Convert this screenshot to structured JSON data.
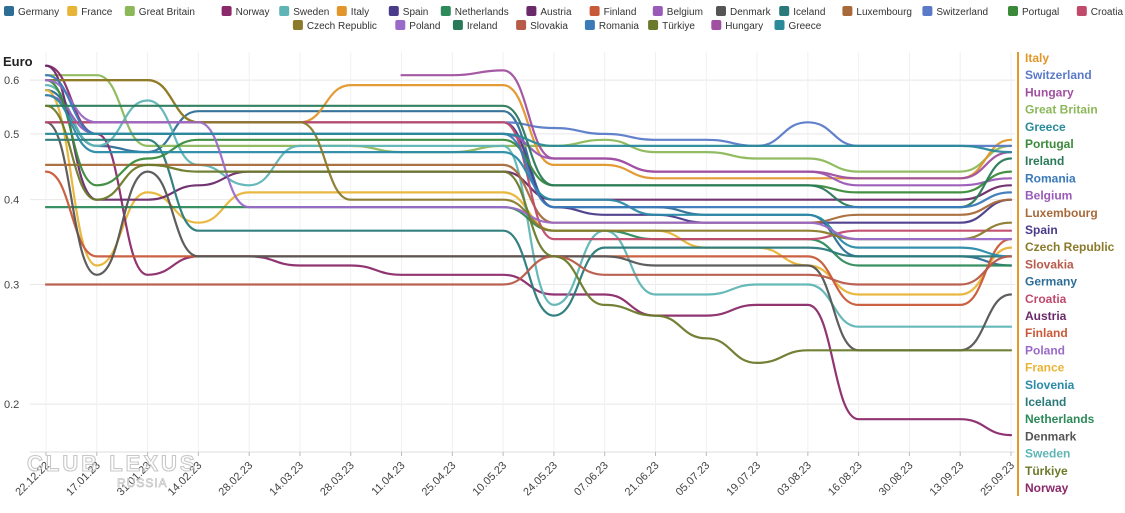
{
  "chart_data": {
    "type": "line",
    "ylabel": "Euro",
    "y_scale": "log",
    "ylim": [
      0.17,
      0.66
    ],
    "yticks": [
      0.2,
      0.3,
      0.4,
      0.5,
      0.6
    ],
    "ytick_labels": [
      "0.2",
      "0.3",
      "0.4",
      "0.5",
      "0.6"
    ],
    "x_ticks": [
      "22.12.22",
      "17.01.23",
      "31.01.23",
      "14.02.23",
      "28.02.23",
      "14.03.23",
      "28.03.23",
      "11.04.23",
      "25.04.23",
      "10.05.23",
      "24.05.23",
      "07.06.23",
      "21.06.23",
      "05.07.23",
      "19.07.23",
      "03.08.23",
      "16.08.23",
      "30.08.23",
      "13.09.23",
      "25.09.23"
    ],
    "legend_placement": "top",
    "grid": "horizontal",
    "watermark": "CLUB LEXUS",
    "watermark_sub": "RUSSIA",
    "series": [
      {
        "name": "Germany",
        "color": "#2e6e96",
        "values": [
          0.58,
          0.48,
          0.47,
          0.54,
          0.54,
          0.54,
          0.54,
          0.54,
          0.54,
          0.54,
          0.39,
          0.39,
          0.39,
          0.38,
          0.38,
          0.38,
          0.33,
          0.33,
          0.33,
          0.32
        ]
      },
      {
        "name": "France",
        "color": "#e8b437",
        "values": [
          0.58,
          0.32,
          0.41,
          0.37,
          0.41,
          0.41,
          0.41,
          0.41,
          0.41,
          0.41,
          0.36,
          0.36,
          0.36,
          0.34,
          0.34,
          0.32,
          0.29,
          0.29,
          0.29,
          0.34
        ]
      },
      {
        "name": "Great Britain",
        "color": "#8cb85a",
        "values": [
          0.61,
          0.61,
          0.48,
          0.48,
          0.48,
          0.48,
          0.48,
          0.47,
          0.47,
          0.48,
          0.48,
          0.49,
          0.47,
          0.47,
          0.46,
          0.46,
          0.44,
          0.44,
          0.44,
          0.48
        ]
      },
      {
        "name": "Norway",
        "color": "#8a2a6a",
        "values": [
          0.63,
          0.5,
          0.31,
          0.33,
          0.33,
          0.32,
          0.32,
          0.31,
          0.31,
          0.31,
          0.29,
          0.29,
          0.27,
          0.27,
          0.28,
          0.28,
          0.19,
          0.19,
          0.19,
          0.18
        ]
      },
      {
        "name": "Sweden",
        "color": "#5fb5b5",
        "values": [
          0.59,
          0.48,
          0.56,
          0.45,
          0.42,
          0.48,
          0.48,
          0.48,
          0.48,
          0.48,
          0.28,
          0.36,
          0.29,
          0.29,
          0.3,
          0.3,
          0.26,
          0.26,
          0.26,
          0.26
        ]
      },
      {
        "name": "Italy",
        "color": "#e0962a",
        "values": [
          0.6,
          0.6,
          0.6,
          0.52,
          0.52,
          0.52,
          0.59,
          0.59,
          0.59,
          0.59,
          0.45,
          0.45,
          0.43,
          0.43,
          0.43,
          0.43,
          0.43,
          0.43,
          0.43,
          0.49
        ]
      },
      {
        "name": "Spain",
        "color": "#4a3a8a",
        "values": [
          0.52,
          0.52,
          0.52,
          0.52,
          0.52,
          0.52,
          0.52,
          0.52,
          0.52,
          0.52,
          0.39,
          0.38,
          0.38,
          0.37,
          0.37,
          0.37,
          0.37,
          0.37,
          0.37,
          0.4
        ]
      },
      {
        "name": "Netherlands",
        "color": "#2e8a5a",
        "values": [
          0.39,
          0.39,
          0.39,
          0.39,
          0.39,
          0.39,
          0.39,
          0.39,
          0.39,
          0.39,
          0.36,
          0.36,
          0.35,
          0.35,
          0.35,
          0.35,
          0.32,
          0.32,
          0.32,
          0.32
        ]
      },
      {
        "name": "Austria",
        "color": "#6a2a6a",
        "values": [
          0.63,
          0.4,
          0.4,
          0.42,
          0.44,
          0.44,
          0.44,
          0.44,
          0.44,
          0.44,
          0.4,
          0.4,
          0.4,
          0.4,
          0.4,
          0.4,
          0.4,
          0.4,
          0.4,
          0.42
        ]
      },
      {
        "name": "Finland",
        "color": "#c85a3a",
        "values": [
          0.44,
          0.33,
          0.33,
          0.33,
          0.33,
          0.33,
          0.33,
          0.33,
          0.33,
          0.33,
          0.33,
          0.33,
          0.33,
          0.33,
          0.33,
          0.33,
          0.28,
          0.28,
          0.28,
          0.35
        ]
      },
      {
        "name": "Belgium",
        "color": "#9a5ab8",
        "values": [
          0.57,
          0.5,
          0.5,
          0.5,
          0.5,
          0.5,
          0.5,
          0.5,
          0.5,
          0.5,
          0.46,
          0.46,
          0.44,
          0.44,
          0.44,
          0.44,
          0.42,
          0.42,
          0.42,
          0.43
        ]
      },
      {
        "name": "Denmark",
        "color": "#555555",
        "values": [
          0.52,
          0.31,
          0.44,
          0.33,
          0.33,
          0.33,
          0.33,
          0.33,
          0.33,
          0.33,
          0.33,
          0.33,
          0.32,
          0.32,
          0.32,
          0.32,
          0.24,
          0.24,
          0.24,
          0.29
        ]
      },
      {
        "name": "Iceland",
        "color": "#2a7a7a",
        "values": [
          0.49,
          0.49,
          0.49,
          0.36,
          0.36,
          0.36,
          0.36,
          0.36,
          0.36,
          0.36,
          0.27,
          0.34,
          0.34,
          0.34,
          0.34,
          0.34,
          0.33,
          0.33,
          0.33,
          0.33
        ]
      },
      {
        "name": "Luxembourg",
        "color": "#a86a3a",
        "values": [
          0.45,
          0.45,
          0.45,
          0.45,
          0.45,
          0.45,
          0.45,
          0.45,
          0.45,
          0.45,
          0.37,
          0.37,
          0.37,
          0.37,
          0.37,
          0.37,
          0.38,
          0.38,
          0.38,
          0.4
        ]
      },
      {
        "name": "Switzerland",
        "color": "#5a7ac8",
        "values": [
          null,
          null,
          null,
          null,
          null,
          null,
          null,
          null,
          null,
          0.52,
          0.51,
          0.5,
          0.49,
          0.49,
          0.48,
          0.52,
          0.48,
          0.48,
          0.48,
          0.48
        ]
      },
      {
        "name": "Portugal",
        "color": "#3a8a3a",
        "values": [
          0.6,
          0.42,
          0.46,
          0.49,
          0.49,
          0.49,
          0.49,
          0.49,
          0.49,
          0.49,
          0.42,
          0.42,
          0.42,
          0.42,
          0.42,
          0.42,
          0.41,
          0.41,
          0.41,
          0.44
        ]
      },
      {
        "name": "Croatia",
        "color": "#c04a6a",
        "values": [
          0.52,
          0.52,
          0.52,
          0.52,
          0.52,
          0.52,
          0.52,
          0.52,
          0.52,
          0.52,
          0.35,
          0.35,
          0.35,
          0.35,
          0.35,
          0.35,
          0.36,
          0.36,
          0.36,
          0.36
        ]
      },
      {
        "name": "Slovenia",
        "color": "#2a8aa8",
        "values": [
          0.57,
          0.47,
          0.47,
          0.47,
          0.47,
          0.47,
          0.47,
          0.47,
          0.47,
          0.47,
          0.4,
          0.4,
          0.38,
          0.38,
          0.38,
          0.38,
          0.34,
          0.34,
          0.34,
          0.33
        ]
      },
      {
        "name": "Czech Republic",
        "color": "#8a7a2a",
        "values": [
          0.6,
          0.6,
          0.6,
          0.52,
          0.52,
          0.52,
          0.4,
          0.4,
          0.4,
          0.4,
          0.36,
          0.36,
          0.36,
          0.36,
          0.36,
          0.36,
          0.35,
          0.35,
          0.35,
          0.37
        ]
      },
      {
        "name": "Poland",
        "color": "#9a6ac8",
        "values": [
          0.6,
          0.52,
          0.52,
          0.52,
          0.39,
          0.39,
          0.39,
          0.39,
          0.39,
          0.39,
          0.37,
          0.37,
          0.37,
          0.37,
          0.37,
          0.37,
          0.35,
          0.35,
          0.35,
          0.35
        ]
      },
      {
        "name": "Ireland",
        "color": "#2a7a5a",
        "values": [
          0.55,
          0.55,
          0.55,
          0.55,
          0.55,
          0.55,
          0.55,
          0.55,
          0.55,
          0.55,
          0.42,
          0.42,
          0.42,
          0.42,
          0.42,
          0.42,
          0.39,
          0.39,
          0.39,
          0.46
        ]
      },
      {
        "name": "Slovakia",
        "color": "#b85a4a",
        "values": [
          0.3,
          0.3,
          0.3,
          0.3,
          0.3,
          0.3,
          0.3,
          0.3,
          0.3,
          0.3,
          0.33,
          0.31,
          0.31,
          0.31,
          0.31,
          0.31,
          0.3,
          0.3,
          0.3,
          0.33
        ]
      },
      {
        "name": "Romania",
        "color": "#3a7ab8",
        "values": [
          0.61,
          0.5,
          0.5,
          0.5,
          0.5,
          0.5,
          0.5,
          0.5,
          0.5,
          0.5,
          0.39,
          0.39,
          0.39,
          0.39,
          0.39,
          0.39,
          0.39,
          0.39,
          0.39,
          0.41
        ]
      },
      {
        "name": "Türkiye",
        "color": "#6a7a2a",
        "values": [
          0.55,
          0.4,
          0.45,
          0.44,
          0.44,
          0.44,
          0.44,
          0.44,
          0.44,
          0.44,
          0.33,
          0.28,
          0.27,
          0.25,
          0.23,
          0.24,
          0.24,
          0.24,
          0.24,
          0.24
        ]
      },
      {
        "name": "Hungary",
        "color": "#a050a0",
        "values": [
          null,
          null,
          null,
          null,
          null,
          null,
          null,
          0.61,
          0.61,
          0.62,
          0.46,
          0.46,
          0.44,
          0.44,
          0.44,
          0.44,
          0.43,
          0.43,
          0.43,
          0.47
        ]
      },
      {
        "name": "Greece",
        "color": "#2a8a9a",
        "values": [
          0.5,
          0.5,
          0.5,
          0.5,
          0.5,
          0.5,
          0.5,
          0.5,
          0.5,
          0.5,
          0.48,
          0.48,
          0.48,
          0.48,
          0.48,
          0.48,
          0.48,
          0.48,
          0.48,
          0.47
        ]
      }
    ],
    "end_labels": [
      {
        "name": "Italy",
        "color": "#e0962a"
      },
      {
        "name": "Switzerland",
        "color": "#5a7ac8"
      },
      {
        "name": "Hungary",
        "color": "#a050a0"
      },
      {
        "name": "Great Britain",
        "color": "#8cb85a"
      },
      {
        "name": "Greece",
        "color": "#2a8a9a"
      },
      {
        "name": "Portugal",
        "color": "#3a8a3a"
      },
      {
        "name": "Ireland",
        "color": "#2a7a5a"
      },
      {
        "name": "Romania",
        "color": "#3a7ab8"
      },
      {
        "name": "Belgium",
        "color": "#9a5ab8"
      },
      {
        "name": "Luxembourg",
        "color": "#a86a3a"
      },
      {
        "name": "Spain",
        "color": "#4a3a8a"
      },
      {
        "name": "Czech Republic",
        "color": "#8a7a2a"
      },
      {
        "name": "Slovakia",
        "color": "#b85a4a"
      },
      {
        "name": "Germany",
        "color": "#2e6e96"
      },
      {
        "name": "Croatia",
        "color": "#c04a6a"
      },
      {
        "name": "Austria",
        "color": "#6a2a6a"
      },
      {
        "name": "Finland",
        "color": "#c85a3a"
      },
      {
        "name": "Poland",
        "color": "#9a6ac8"
      },
      {
        "name": "France",
        "color": "#e8b437"
      },
      {
        "name": "Slovenia",
        "color": "#2a8aa8"
      },
      {
        "name": "Iceland",
        "color": "#2a7a7a"
      },
      {
        "name": "Netherlands",
        "color": "#2e8a5a"
      },
      {
        "name": "Denmark",
        "color": "#555555"
      },
      {
        "name": "Sweden",
        "color": "#5fb5b5"
      },
      {
        "name": "Türkiye",
        "color": "#6a7a2a"
      },
      {
        "name": "Norway",
        "color": "#8a2a6a"
      }
    ]
  }
}
